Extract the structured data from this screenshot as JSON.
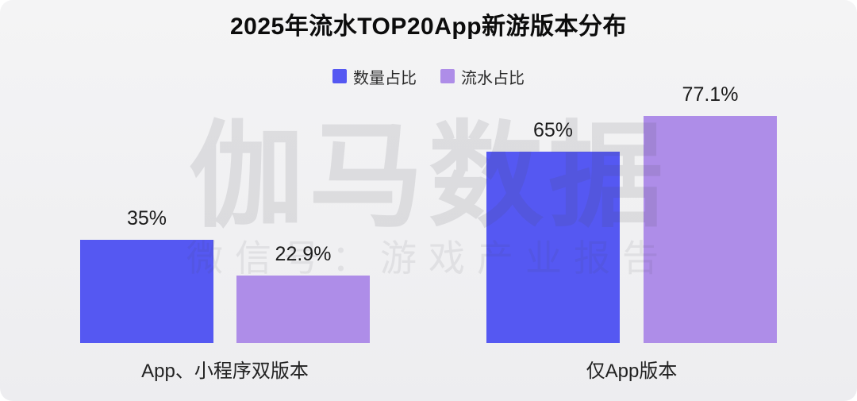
{
  "title": "2025年流水TOP20App新游版本分布",
  "legend": {
    "items": [
      {
        "label": "数量占比",
        "color": "#5558f2"
      },
      {
        "label": "流水占比",
        "color": "#ae8de8"
      }
    ]
  },
  "watermark": {
    "line1": "伽马数据",
    "line2": "微信号：游戏产业报告"
  },
  "chart_data": {
    "type": "bar",
    "title": "2025年流水TOP20App新游版本分布",
    "categories": [
      "App、小程序双版本",
      "仅App版本"
    ],
    "series": [
      {
        "name": "数量占比",
        "color": "#5558f2",
        "values": [
          35,
          65
        ],
        "labels": [
          "35%",
          "65%"
        ]
      },
      {
        "name": "流水占比",
        "color": "#ae8de8",
        "values": [
          22.9,
          77.1
        ],
        "labels": [
          "22.9%",
          "77.1%"
        ]
      }
    ],
    "xlabel": "",
    "ylabel": "",
    "ylim": [
      0,
      100
    ],
    "grid": false,
    "legend_position": "top",
    "value_labels_shown": true,
    "axes_shown": false
  }
}
